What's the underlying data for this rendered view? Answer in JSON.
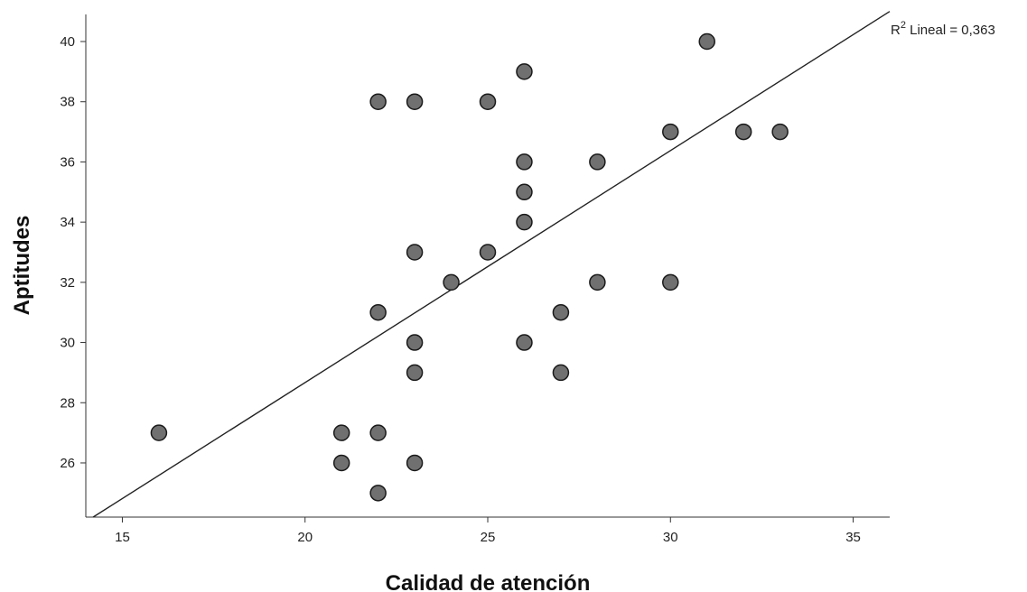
{
  "chart_data": {
    "type": "scatter",
    "title": "",
    "xlabel": "Calidad de atención",
    "ylabel": "Aptitudes",
    "xlim": [
      14,
      36
    ],
    "ylim": [
      24.2,
      40.9
    ],
    "xticks": [
      15,
      20,
      25,
      30,
      35
    ],
    "yticks": [
      26,
      28,
      30,
      32,
      34,
      36,
      38,
      40
    ],
    "grid": false,
    "legend": "none",
    "marker_color": "#707070",
    "marker_edge_color": "#1a1a1a",
    "fit_line": {
      "label_prefix": "R",
      "label_exponent": "2",
      "label_text": " Lineal = 0,363",
      "x_start": 14.2,
      "y_start": 24.2,
      "x_end": 36,
      "y_end": 41.0,
      "color": "#222222"
    },
    "points": [
      {
        "x": 16,
        "y": 27
      },
      {
        "x": 21,
        "y": 27
      },
      {
        "x": 21,
        "y": 26
      },
      {
        "x": 22,
        "y": 38
      },
      {
        "x": 22,
        "y": 31
      },
      {
        "x": 22,
        "y": 27
      },
      {
        "x": 22,
        "y": 25
      },
      {
        "x": 23,
        "y": 38
      },
      {
        "x": 23,
        "y": 33
      },
      {
        "x": 23,
        "y": 30
      },
      {
        "x": 23,
        "y": 29
      },
      {
        "x": 23,
        "y": 26
      },
      {
        "x": 24,
        "y": 32
      },
      {
        "x": 25,
        "y": 38
      },
      {
        "x": 25,
        "y": 33
      },
      {
        "x": 26,
        "y": 39
      },
      {
        "x": 26,
        "y": 36
      },
      {
        "x": 26,
        "y": 35
      },
      {
        "x": 26,
        "y": 34
      },
      {
        "x": 26,
        "y": 30
      },
      {
        "x": 27,
        "y": 31
      },
      {
        "x": 27,
        "y": 29
      },
      {
        "x": 28,
        "y": 36
      },
      {
        "x": 28,
        "y": 32
      },
      {
        "x": 30,
        "y": 37
      },
      {
        "x": 30,
        "y": 32
      },
      {
        "x": 31,
        "y": 40
      },
      {
        "x": 32,
        "y": 37
      },
      {
        "x": 33,
        "y": 37
      }
    ]
  }
}
